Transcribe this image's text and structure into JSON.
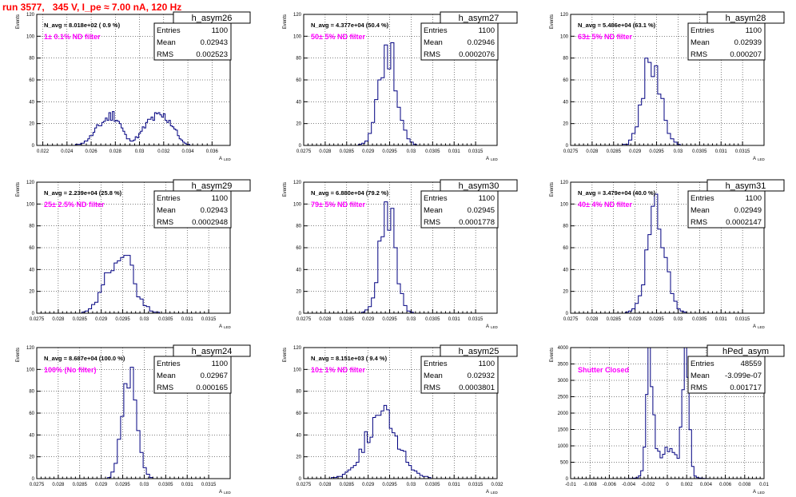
{
  "page_title": "run 3577,   345 V, I_pe ≈ 7.00 nA, 120 Hz",
  "colors": {
    "histogram": "#000080",
    "filter_label": "#ff00ff",
    "title": "#ff0000"
  },
  "chart_data": [
    {
      "type": "bar",
      "name": "h_asym26",
      "stats": {
        "entries_label": "Entries",
        "entries": "1100",
        "mean_label": "Mean",
        "mean": "0.02943",
        "rms_label": "RMS",
        "rms": "0.002523"
      },
      "navg": "N_avg = 8.018e+02 ( 0.9 %)",
      "filter": "1± 0.1% ND filter",
      "xlabel": "A",
      "xlabel_sub": "LED",
      "ylabel": "Events",
      "xlim": [
        0.0215,
        0.0375
      ],
      "ylim": [
        0,
        120
      ],
      "xticks": [
        0.022,
        0.024,
        0.026,
        0.028,
        0.03,
        0.032,
        0.034,
        0.036
      ],
      "yticks": [
        0,
        20,
        40,
        60,
        80,
        100,
        120
      ],
      "peaks": [
        [
          0.0272,
          0.0009,
          21
        ],
        [
          0.0281,
          0.0005,
          13
        ],
        [
          0.0312,
          0.0009,
          24
        ],
        [
          0.0325,
          0.0006,
          14
        ]
      ],
      "seed": 11,
      "npts": 110
    },
    {
      "type": "bar",
      "name": "h_asym27",
      "stats": {
        "entries_label": "Entries",
        "entries": "1100",
        "mean_label": "Mean",
        "mean": "0.02946",
        "rms_label": "RMS",
        "rms": "0.0002076"
      },
      "navg": "N_avg = 4.377e+04 (50.4 %)",
      "filter": "50± 5% ND filter",
      "xlabel": "A",
      "xlabel_sub": "LED",
      "ylabel": "Events",
      "xlim": [
        0.0275,
        0.032
      ],
      "ylim": [
        0,
        120
      ],
      "xticks": [
        0.0275,
        0.028,
        0.0285,
        0.029,
        0.0295,
        0.03,
        0.0305,
        0.031,
        0.0315
      ],
      "yticks": [
        0,
        20,
        40,
        60,
        80,
        100,
        120
      ],
      "peaks": [
        [
          0.02946,
          0.000208,
          88
        ]
      ],
      "seed": 27,
      "npts": 60
    },
    {
      "type": "bar",
      "name": "h_asym28",
      "stats": {
        "entries_label": "Entries",
        "entries": "1100",
        "mean_label": "Mean",
        "mean": "0.02939",
        "rms_label": "RMS",
        "rms": "0.000207"
      },
      "navg": "N_avg = 5.486e+04 (63.1 %)",
      "filter": "63± 5% ND filter",
      "xlabel": "A",
      "xlabel_sub": "LED",
      "ylabel": "Events",
      "xlim": [
        0.0275,
        0.032
      ],
      "ylim": [
        0,
        120
      ],
      "xticks": [
        0.0275,
        0.028,
        0.0285,
        0.029,
        0.0295,
        0.03,
        0.0305,
        0.031,
        0.0315
      ],
      "yticks": [
        0,
        20,
        40,
        60,
        80,
        100,
        120
      ],
      "peaks": [
        [
          0.02939,
          0.000207,
          80
        ]
      ],
      "seed": 28,
      "npts": 60
    },
    {
      "type": "bar",
      "name": "h_asym29",
      "stats": {
        "entries_label": "Entries",
        "entries": "1100",
        "mean_label": "Mean",
        "mean": "0.02943",
        "rms_label": "RMS",
        "rms": "0.0002948"
      },
      "navg": "N_avg = 2.239e+04 (25.8 %)",
      "filter": "25± 2.5% ND filter",
      "xlabel": "A",
      "xlabel_sub": "LED",
      "ylabel": "Events",
      "xlim": [
        0.0275,
        0.032
      ],
      "ylim": [
        0,
        120
      ],
      "xticks": [
        0.0275,
        0.028,
        0.0285,
        0.029,
        0.0295,
        0.03,
        0.0305,
        0.031,
        0.0315
      ],
      "yticks": [
        0,
        20,
        40,
        60,
        80,
        100,
        120
      ],
      "peaks": [
        [
          0.02943,
          0.000295,
          58
        ]
      ],
      "seed": 29,
      "npts": 60
    },
    {
      "type": "bar",
      "name": "h_asym30",
      "stats": {
        "entries_label": "Entries",
        "entries": "1100",
        "mean_label": "Mean",
        "mean": "0.02945",
        "rms_label": "RMS",
        "rms": "0.0001778"
      },
      "navg": "N_avg = 6.880e+04 (79.2 %)",
      "filter": "79± 5% ND filter",
      "xlabel": "A",
      "xlabel_sub": "LED",
      "ylabel": "Events",
      "xlim": [
        0.0275,
        0.032
      ],
      "ylim": [
        0,
        120
      ],
      "xticks": [
        0.0275,
        0.028,
        0.0285,
        0.029,
        0.0295,
        0.03,
        0.0305,
        0.031,
        0.0315
      ],
      "yticks": [
        0,
        20,
        40,
        60,
        80,
        100,
        120
      ],
      "peaks": [
        [
          0.02945,
          0.000178,
          96
        ]
      ],
      "seed": 30,
      "npts": 60
    },
    {
      "type": "bar",
      "name": "h_asym31",
      "stats": {
        "entries_label": "Entries",
        "entries": "1100",
        "mean_label": "Mean",
        "mean": "0.02949",
        "rms_label": "RMS",
        "rms": "0.0002147"
      },
      "navg": "N_avg = 3.479e+04 (40.0 %)",
      "filter": "40± 4% ND filter",
      "xlabel": "A",
      "xlabel_sub": "LED",
      "ylabel": "Events",
      "xlim": [
        0.0275,
        0.032
      ],
      "ylim": [
        0,
        120
      ],
      "xticks": [
        0.0275,
        0.028,
        0.0285,
        0.029,
        0.0295,
        0.03,
        0.0305,
        0.031,
        0.0315
      ],
      "yticks": [
        0,
        20,
        40,
        60,
        80,
        100,
        120
      ],
      "peaks": [
        [
          0.02949,
          0.000215,
          90
        ]
      ],
      "seed": 31,
      "npts": 60
    },
    {
      "type": "bar",
      "name": "h_asym24",
      "stats": {
        "entries_label": "Entries",
        "entries": "1100",
        "mean_label": "Mean",
        "mean": "0.02967",
        "rms_label": "RMS",
        "rms": "0.000165"
      },
      "navg": "N_avg = 8.687e+04 (100.0 %)",
      "filter": "100% (No filter)",
      "xlabel": "A",
      "xlabel_sub": "LED",
      "ylabel": "Events",
      "xlim": [
        0.0275,
        0.032
      ],
      "ylim": [
        0,
        120
      ],
      "xticks": [
        0.0275,
        0.028,
        0.0285,
        0.029,
        0.0295,
        0.03,
        0.0305,
        0.031,
        0.0315
      ],
      "yticks": [
        0,
        20,
        40,
        60,
        80,
        100,
        120
      ],
      "peaks": [
        [
          0.02967,
          0.000165,
          104
        ]
      ],
      "seed": 24,
      "npts": 60
    },
    {
      "type": "bar",
      "name": "h_asym25",
      "stats": {
        "entries_label": "Entries",
        "entries": "1100",
        "mean_label": "Mean",
        "mean": "0.02932",
        "rms_label": "RMS",
        "rms": "0.0003801"
      },
      "navg": "N_avg = 8.151e+03 ( 9.4 %)",
      "filter": "10± 1% ND filter",
      "xlabel": "A",
      "xlabel_sub": "LED",
      "ylabel": "Events",
      "xlim": [
        0.0275,
        0.032
      ],
      "ylim": [
        0,
        120
      ],
      "xticks": [
        0.0275,
        0.028,
        0.0285,
        0.029,
        0.0295,
        0.03,
        0.0305,
        0.031,
        0.0315,
        0.032
      ],
      "yticks": [
        0,
        20,
        40,
        60,
        80,
        100,
        120
      ],
      "peaks": [
        [
          0.02932,
          0.00038,
          57
        ]
      ],
      "seed": 25,
      "npts": 70
    },
    {
      "type": "bar",
      "name": "hPed_asym",
      "stats": {
        "entries_label": "Entries",
        "entries": "48559",
        "mean_label": "Mean",
        "mean": "-3.099e-07",
        "rms_label": "RMS",
        "rms": "0.001717"
      },
      "navg": "",
      "filter": "Shutter Closed",
      "xlabel": "A",
      "xlabel_sub": "LED",
      "ylabel": "Events",
      "xlim": [
        -0.01,
        0.01
      ],
      "ylim": [
        0,
        4000
      ],
      "xticks": [
        -0.01,
        -0.008,
        -0.006,
        -0.004,
        -0.002,
        0,
        0.002,
        0.004,
        0.006,
        0.008,
        0.01
      ],
      "yticks": [
        0,
        500,
        1000,
        1500,
        2000,
        2500,
        3000,
        3500,
        4000
      ],
      "peaks": [
        [
          -0.0018,
          0.00035,
          3300
        ],
        [
          0.0019,
          0.00032,
          3500
        ],
        [
          0.0,
          0.0012,
          800
        ]
      ],
      "seed": 99,
      "npts": 80
    }
  ]
}
